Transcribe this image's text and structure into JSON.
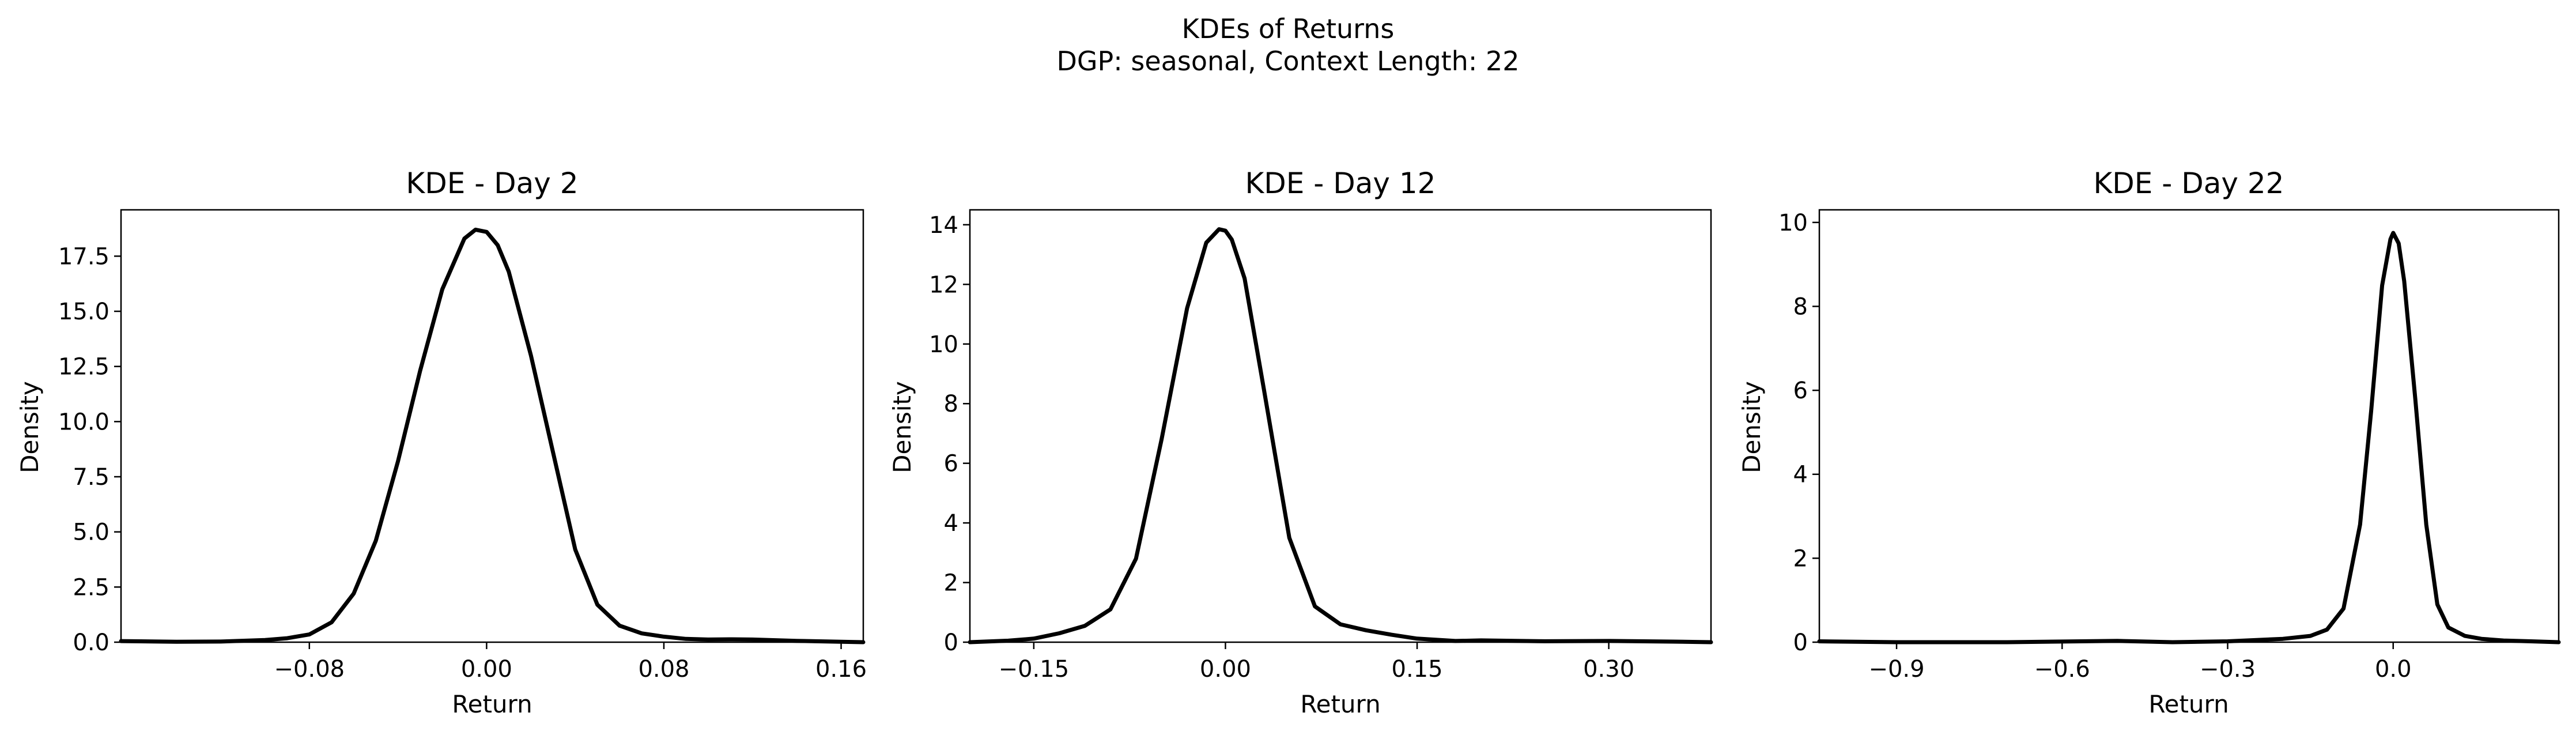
{
  "figure": {
    "title": "KDEs of Returns",
    "subtitle": "DGP: seasonal, Context Length: 22"
  },
  "chart_data": [
    {
      "type": "line",
      "title": "KDE - Day 2",
      "xlabel": "Return",
      "ylabel": "Density",
      "xlim": [
        -0.165,
        0.17
      ],
      "ylim": [
        0,
        19.6
      ],
      "xticks": [
        -0.08,
        0.0,
        0.08,
        0.16
      ],
      "xtick_labels": [
        "−0.08",
        "0.00",
        "0.08",
        "0.16"
      ],
      "yticks": [
        0,
        2.5,
        5,
        7.5,
        10,
        12.5,
        15,
        17.5
      ],
      "ytick_labels": [
        "0.0",
        "2.5",
        "5.0",
        "7.5",
        "10.0",
        "12.5",
        "15.0",
        "17.5"
      ],
      "grid": false,
      "line_color": "#000000",
      "series": [
        {
          "x": [
            -0.165,
            -0.14,
            -0.12,
            -0.1,
            -0.09,
            -0.08,
            -0.07,
            -0.06,
            -0.05,
            -0.04,
            -0.03,
            -0.02,
            -0.01,
            -0.005,
            0.0,
            0.005,
            0.01,
            0.02,
            0.03,
            0.04,
            0.05,
            0.06,
            0.07,
            0.08,
            0.09,
            0.1,
            0.11,
            0.12,
            0.14,
            0.16,
            0.17
          ],
          "y": [
            0.05,
            0.02,
            0.03,
            0.1,
            0.18,
            0.35,
            0.9,
            2.2,
            4.6,
            8.2,
            12.3,
            16.0,
            18.3,
            18.7,
            18.6,
            18.0,
            16.8,
            13.0,
            8.6,
            4.2,
            1.7,
            0.75,
            0.4,
            0.25,
            0.15,
            0.12,
            0.13,
            0.12,
            0.06,
            0.02,
            0.0
          ]
        }
      ]
    },
    {
      "type": "line",
      "title": "KDE - Day 12",
      "xlabel": "Return",
      "ylabel": "Density",
      "xlim": [
        -0.2,
        0.38
      ],
      "ylim": [
        0,
        14.5
      ],
      "xticks": [
        -0.15,
        0.0,
        0.15,
        0.3
      ],
      "xtick_labels": [
        "−0.15",
        "0.00",
        "0.15",
        "0.30"
      ],
      "yticks": [
        0,
        2,
        4,
        6,
        8,
        10,
        12,
        14
      ],
      "ytick_labels": [
        "0",
        "2",
        "4",
        "6",
        "8",
        "10",
        "12",
        "14"
      ],
      "grid": false,
      "line_color": "#000000",
      "series": [
        {
          "x": [
            -0.2,
            -0.17,
            -0.15,
            -0.13,
            -0.11,
            -0.09,
            -0.07,
            -0.05,
            -0.03,
            -0.015,
            -0.005,
            0.0,
            0.005,
            0.015,
            0.03,
            0.05,
            0.07,
            0.09,
            0.11,
            0.13,
            0.15,
            0.18,
            0.2,
            0.25,
            0.3,
            0.35,
            0.38
          ],
          "y": [
            0.0,
            0.05,
            0.12,
            0.3,
            0.55,
            1.1,
            2.8,
            6.8,
            11.2,
            13.4,
            13.85,
            13.8,
            13.5,
            12.2,
            8.5,
            3.5,
            1.2,
            0.6,
            0.4,
            0.25,
            0.12,
            0.04,
            0.06,
            0.03,
            0.04,
            0.02,
            0.0
          ]
        }
      ]
    },
    {
      "type": "line",
      "title": "KDE - Day 22",
      "xlabel": "Return",
      "ylabel": "Density",
      "xlim": [
        -1.04,
        0.3
      ],
      "ylim": [
        0,
        10.3
      ],
      "xticks": [
        -0.9,
        -0.6,
        -0.3,
        0.0
      ],
      "xtick_labels": [
        "−0.9",
        "−0.6",
        "−0.3",
        "0.0"
      ],
      "yticks": [
        0,
        2,
        4,
        6,
        8,
        10
      ],
      "ytick_labels": [
        "0",
        "2",
        "4",
        "6",
        "8",
        "10"
      ],
      "grid": false,
      "line_color": "#000000",
      "series": [
        {
          "x": [
            -1.04,
            -0.9,
            -0.7,
            -0.5,
            -0.4,
            -0.3,
            -0.2,
            -0.15,
            -0.12,
            -0.09,
            -0.06,
            -0.04,
            -0.02,
            -0.005,
            0.0,
            0.01,
            0.02,
            0.04,
            0.06,
            0.08,
            0.1,
            0.13,
            0.16,
            0.2,
            0.25,
            0.3
          ],
          "y": [
            0.02,
            0.0,
            0.0,
            0.03,
            0.0,
            0.02,
            0.08,
            0.15,
            0.3,
            0.8,
            2.8,
            5.5,
            8.5,
            9.6,
            9.75,
            9.5,
            8.6,
            5.8,
            2.8,
            0.9,
            0.35,
            0.15,
            0.08,
            0.04,
            0.02,
            0.0
          ]
        }
      ]
    }
  ]
}
